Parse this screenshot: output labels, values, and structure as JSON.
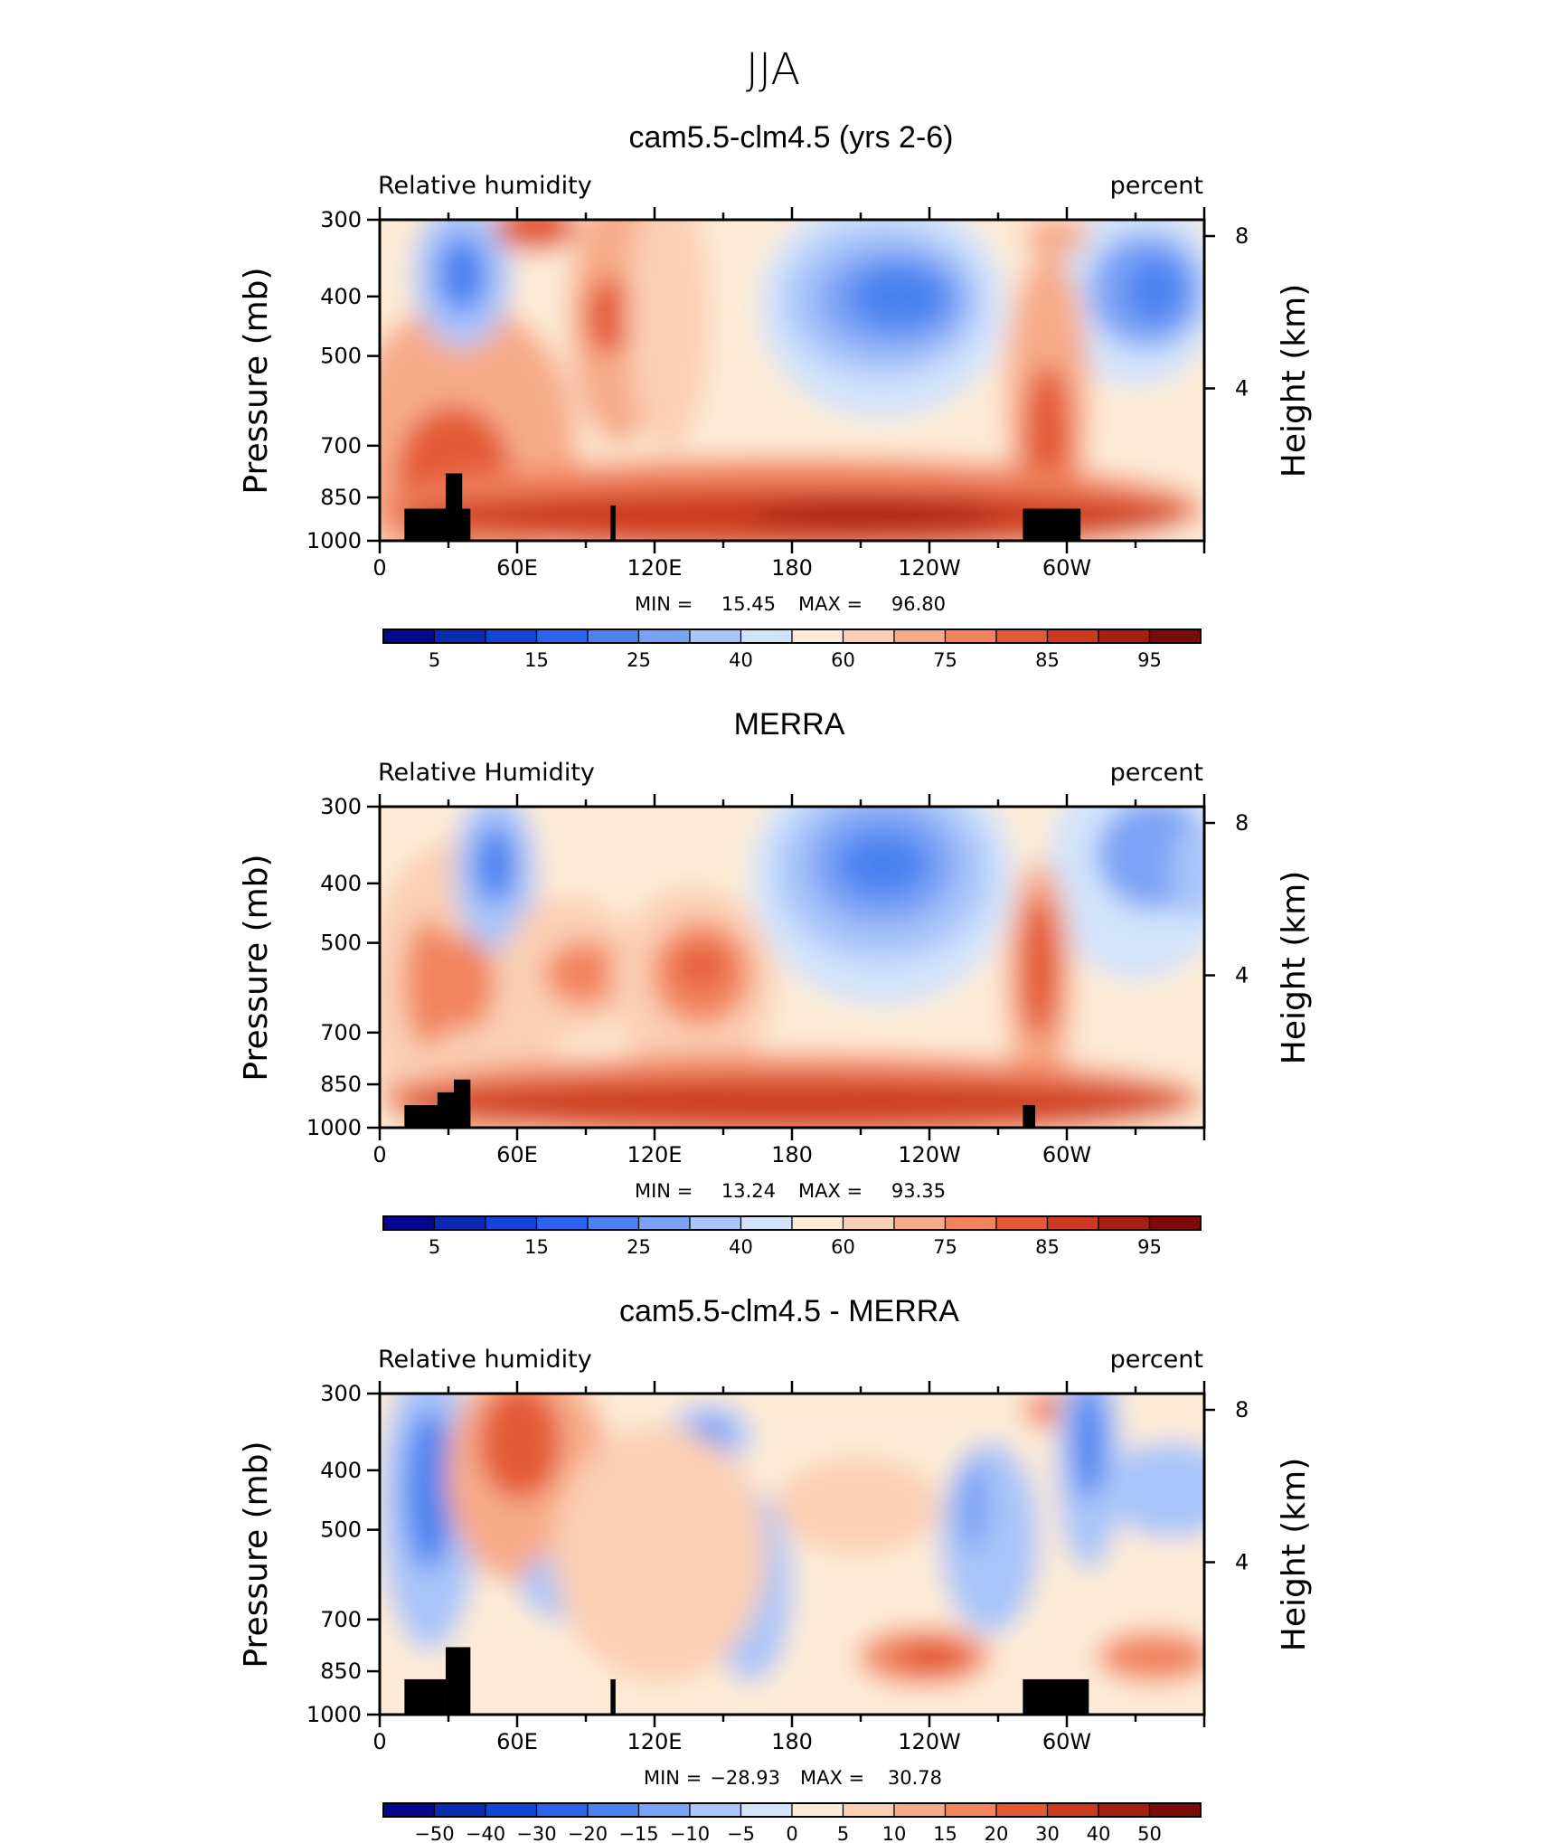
{
  "figure_title": "JJA",
  "chart_data": [
    {
      "type": "heatmap",
      "title": "cam5.5-clm4.5 (yrs 2-6)",
      "variable": "Relative humidity",
      "units": "percent",
      "ylabel": "Pressure (mb)",
      "y2label": "Height (km)",
      "x_ticks": [
        "0",
        "60E",
        "120E",
        "180",
        "120W",
        "60W"
      ],
      "y_ticks": [
        "300",
        "400",
        "500",
        "700",
        "850",
        "1000"
      ],
      "y2_ticks": [
        "8",
        "4"
      ],
      "min_label": "MIN =",
      "min": "15.45",
      "max_label": "MAX =",
      "max": "96.80",
      "colorbar_labels": [
        "5",
        "15",
        "25",
        "40",
        "60",
        "75",
        "85",
        "95"
      ]
    },
    {
      "type": "heatmap",
      "title": "MERRA",
      "variable": "Relative Humidity",
      "units": "percent",
      "ylabel": "Pressure (mb)",
      "y2label": "Height (km)",
      "x_ticks": [
        "0",
        "60E",
        "120E",
        "180",
        "120W",
        "60W"
      ],
      "y_ticks": [
        "300",
        "400",
        "500",
        "700",
        "850",
        "1000"
      ],
      "y2_ticks": [
        "8",
        "4"
      ],
      "min_label": "MIN =",
      "min": "13.24",
      "max_label": "MAX =",
      "max": "93.35",
      "colorbar_labels": [
        "5",
        "15",
        "25",
        "40",
        "60",
        "75",
        "85",
        "95"
      ]
    },
    {
      "type": "heatmap",
      "title": "cam5.5-clm4.5 - MERRA",
      "variable": "Relative humidity",
      "units": "percent",
      "ylabel": "Pressure (mb)",
      "y2label": "Height (km)",
      "x_ticks": [
        "0",
        "60E",
        "120E",
        "180",
        "120W",
        "60W"
      ],
      "y_ticks": [
        "300",
        "400",
        "500",
        "700",
        "850",
        "1000"
      ],
      "y2_ticks": [
        "8",
        "4"
      ],
      "min_label": "MIN =",
      "min": "−28.93",
      "max_label": "MAX =",
      "max": "30.78",
      "colorbar_labels": [
        "−50",
        "−40",
        "−30",
        "−20",
        "−15",
        "−10",
        "−5",
        "0",
        "5",
        "10",
        "15",
        "20",
        "30",
        "40",
        "50"
      ]
    }
  ],
  "colors": {
    "abs_palette": [
      "#06098f",
      "#0b2bb2",
      "#1445d6",
      "#2a63ec",
      "#4a82f0",
      "#7ba3f5",
      "#a9c5f9",
      "#d2e3fb",
      "#fdebd6",
      "#fbcfb3",
      "#f7ab89",
      "#f2845e",
      "#e45a35",
      "#cc3a1f",
      "#a51f12",
      "#7d0c08"
    ],
    "diff_palette": [
      "#06098f",
      "#0b2bb2",
      "#1445d6",
      "#2a63ec",
      "#4a82f0",
      "#7ba3f5",
      "#a9c5f9",
      "#d2e3fb",
      "#fdebd6",
      "#fbcfb3",
      "#f7ab89",
      "#f2845e",
      "#e45a35",
      "#cc3a1f",
      "#a51f12",
      "#7d0c08"
    ]
  }
}
